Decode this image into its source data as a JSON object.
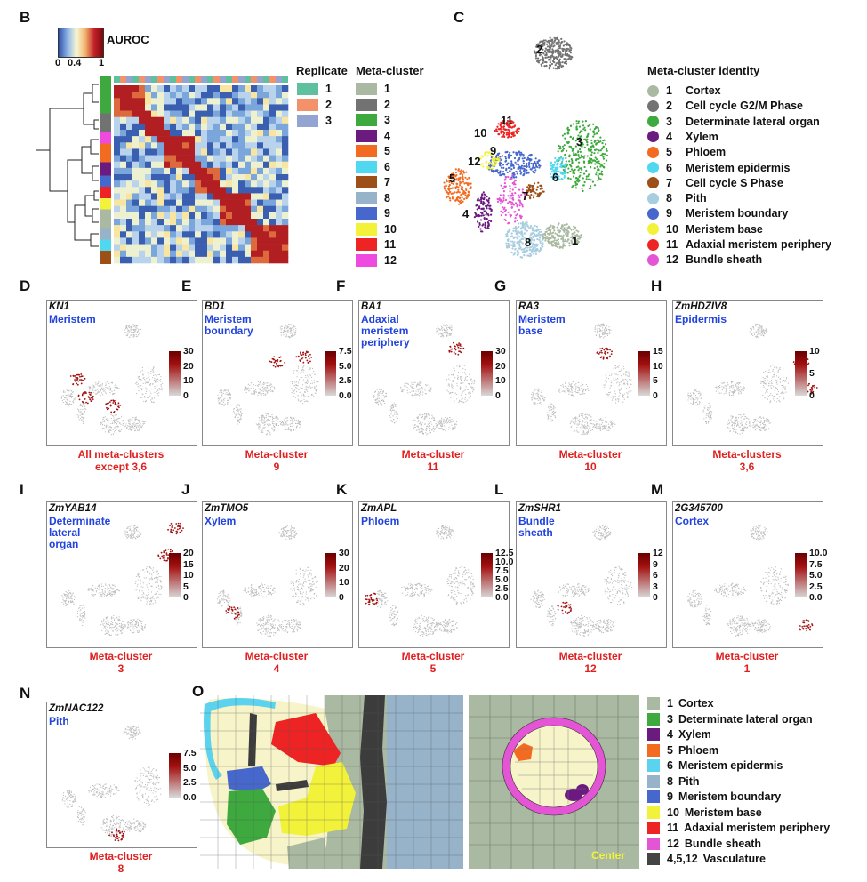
{
  "panels": {
    "B": "B",
    "C": "C",
    "D": "D",
    "E": "E",
    "F": "F",
    "G": "G",
    "H": "H",
    "I": "I",
    "J": "J",
    "K": "K",
    "L": "L",
    "M": "M",
    "N": "N",
    "O": "O"
  },
  "auroc": {
    "title": "AUROC",
    "ticks": [
      "0",
      "0.4",
      "1"
    ]
  },
  "replicate": {
    "title": "Replicate",
    "items": [
      {
        "label": "1",
        "color": "#5fc0a0"
      },
      {
        "label": "2",
        "color": "#f3916a"
      },
      {
        "label": "3",
        "color": "#93a4d2"
      }
    ]
  },
  "metacluster": {
    "title": "Meta-cluster",
    "items": [
      {
        "label": "1",
        "color": "#aab9a1"
      },
      {
        "label": "2",
        "color": "#727272"
      },
      {
        "label": "3",
        "color": "#3ea93e"
      },
      {
        "label": "4",
        "color": "#6b1a80"
      },
      {
        "label": "5",
        "color": "#f26b21"
      },
      {
        "label": "6",
        "color": "#4fd8ef"
      },
      {
        "label": "7",
        "color": "#9c4f16"
      },
      {
        "label": "8",
        "color": "#96b3c9"
      },
      {
        "label": "9",
        "color": "#4668cc"
      },
      {
        "label": "10",
        "color": "#f2f23a"
      },
      {
        "label": "11",
        "color": "#ee2424"
      },
      {
        "label": "12",
        "color": "#ee4ae0"
      }
    ]
  },
  "identity": {
    "title": "Meta-cluster identity",
    "items": [
      {
        "num": "1",
        "name": "Cortex",
        "color": "#aab9a1"
      },
      {
        "num": "2",
        "name": "Cell cycle G2/M Phase",
        "color": "#727272"
      },
      {
        "num": "3",
        "name": "Determinate lateral organ",
        "color": "#3ea93e"
      },
      {
        "num": "4",
        "name": "Xylem",
        "color": "#6b1a80"
      },
      {
        "num": "5",
        "name": "Phloem",
        "color": "#f26b21"
      },
      {
        "num": "6",
        "name": "Meristem epidermis",
        "color": "#4fd8ef"
      },
      {
        "num": "7",
        "name": "Cell cycle S Phase",
        "color": "#9c4f16"
      },
      {
        "num": "8",
        "name": "Pith",
        "color": "#a8cde0"
      },
      {
        "num": "9",
        "name": "Meristem boundary",
        "color": "#4668cc"
      },
      {
        "num": "10",
        "name": "Meristem base",
        "color": "#f2f23a"
      },
      {
        "num": "11",
        "name": "Adaxial meristem periphery",
        "color": "#ee2424"
      },
      {
        "num": "12",
        "name": "Bundle sheath",
        "color": "#e455d5"
      }
    ]
  },
  "umap_labels": [
    "2",
    "11",
    "10",
    "9",
    "12",
    "3",
    "5",
    "6",
    "7",
    "4",
    "8",
    "1"
  ],
  "genes": [
    {
      "id": "D",
      "gene": "KN1",
      "desc": "Meristem",
      "ticks": [
        "30",
        "20",
        "10",
        "0"
      ],
      "cap1": "All meta-clusters",
      "cap2": "except 3,6"
    },
    {
      "id": "E",
      "gene": "BD1",
      "desc": "Meristem\nboundary",
      "ticks": [
        "7.5",
        "5.0",
        "2.5",
        "0.0"
      ],
      "cap1": "Meta-cluster",
      "cap2": "9"
    },
    {
      "id": "F",
      "gene": "BA1",
      "desc": "Adaxial\nmeristem\nperiphery",
      "ticks": [
        "30",
        "20",
        "10",
        "0"
      ],
      "cap1": "Meta-cluster",
      "cap2": "11"
    },
    {
      "id": "G",
      "gene": "RA3",
      "desc": "Meristem\nbase",
      "ticks": [
        "15",
        "10",
        "5",
        "0"
      ],
      "cap1": "Meta-cluster",
      "cap2": "10"
    },
    {
      "id": "H",
      "gene": "ZmHDZIV8",
      "desc": "Epidermis",
      "ticks": [
        "10",
        "5",
        "0"
      ],
      "cap1": "Meta-clusters",
      "cap2": "3,6"
    },
    {
      "id": "I",
      "gene": "ZmYAB14",
      "desc": "Determinate\nlateral\norgan",
      "ticks": [
        "20",
        "15",
        "10",
        "5",
        "0"
      ],
      "cap1": "Meta-cluster",
      "cap2": "3"
    },
    {
      "id": "J",
      "gene": "ZmTMO5",
      "desc": "Xylem",
      "ticks": [
        "30",
        "20",
        "10",
        "0"
      ],
      "cap1": "Meta-cluster",
      "cap2": "4"
    },
    {
      "id": "K",
      "gene": "ZmAPL",
      "desc": "Phloem",
      "ticks": [
        "12.5",
        "10.0",
        "7.5",
        "5.0",
        "2.5",
        "0.0"
      ],
      "cap1": "Meta-cluster",
      "cap2": "5"
    },
    {
      "id": "L",
      "gene": "ZmSHR1",
      "desc": "Bundle\nsheath",
      "ticks": [
        "12",
        "9",
        "6",
        "3",
        "0"
      ],
      "cap1": "Meta-cluster",
      "cap2": "12"
    },
    {
      "id": "M",
      "gene": "2G345700",
      "desc": "Cortex",
      "ticks": [
        "10.0",
        "7.5",
        "5.0",
        "2.5",
        "0.0"
      ],
      "cap1": "Meta-cluster",
      "cap2": "1"
    },
    {
      "id": "N",
      "gene": "ZmNAC122",
      "desc": "Pith",
      "ticks": [
        "7.5",
        "5.0",
        "2.5",
        "0.0"
      ],
      "cap1": "Meta-cluster",
      "cap2": "8"
    }
  ],
  "o_legend": [
    {
      "num": "1",
      "name": "Cortex",
      "color": "#aab9a1"
    },
    {
      "num": "3",
      "name": "Determinate lateral organ",
      "color": "#3ea93e"
    },
    {
      "num": "4",
      "name": "Xylem",
      "color": "#6b1a80"
    },
    {
      "num": "5",
      "name": "Phloem",
      "color": "#f26b21"
    },
    {
      "num": "6",
      "name": "Meristem epidermis",
      "color": "#5bd2ee"
    },
    {
      "num": "8",
      "name": "Pith",
      "color": "#96b3c9"
    },
    {
      "num": "9",
      "name": "Meristem boundary",
      "color": "#4668cc"
    },
    {
      "num": "10",
      "name": "Meristem base",
      "color": "#f2f23a"
    },
    {
      "num": "11",
      "name": "Adaxial meristem periphery",
      "color": "#ee2424"
    },
    {
      "num": "12",
      "name": "Bundle sheath",
      "color": "#e455d5"
    },
    {
      "num": "4,5,12",
      "name": "Vasculature",
      "color": "#444444"
    }
  ],
  "center_label": "Center"
}
